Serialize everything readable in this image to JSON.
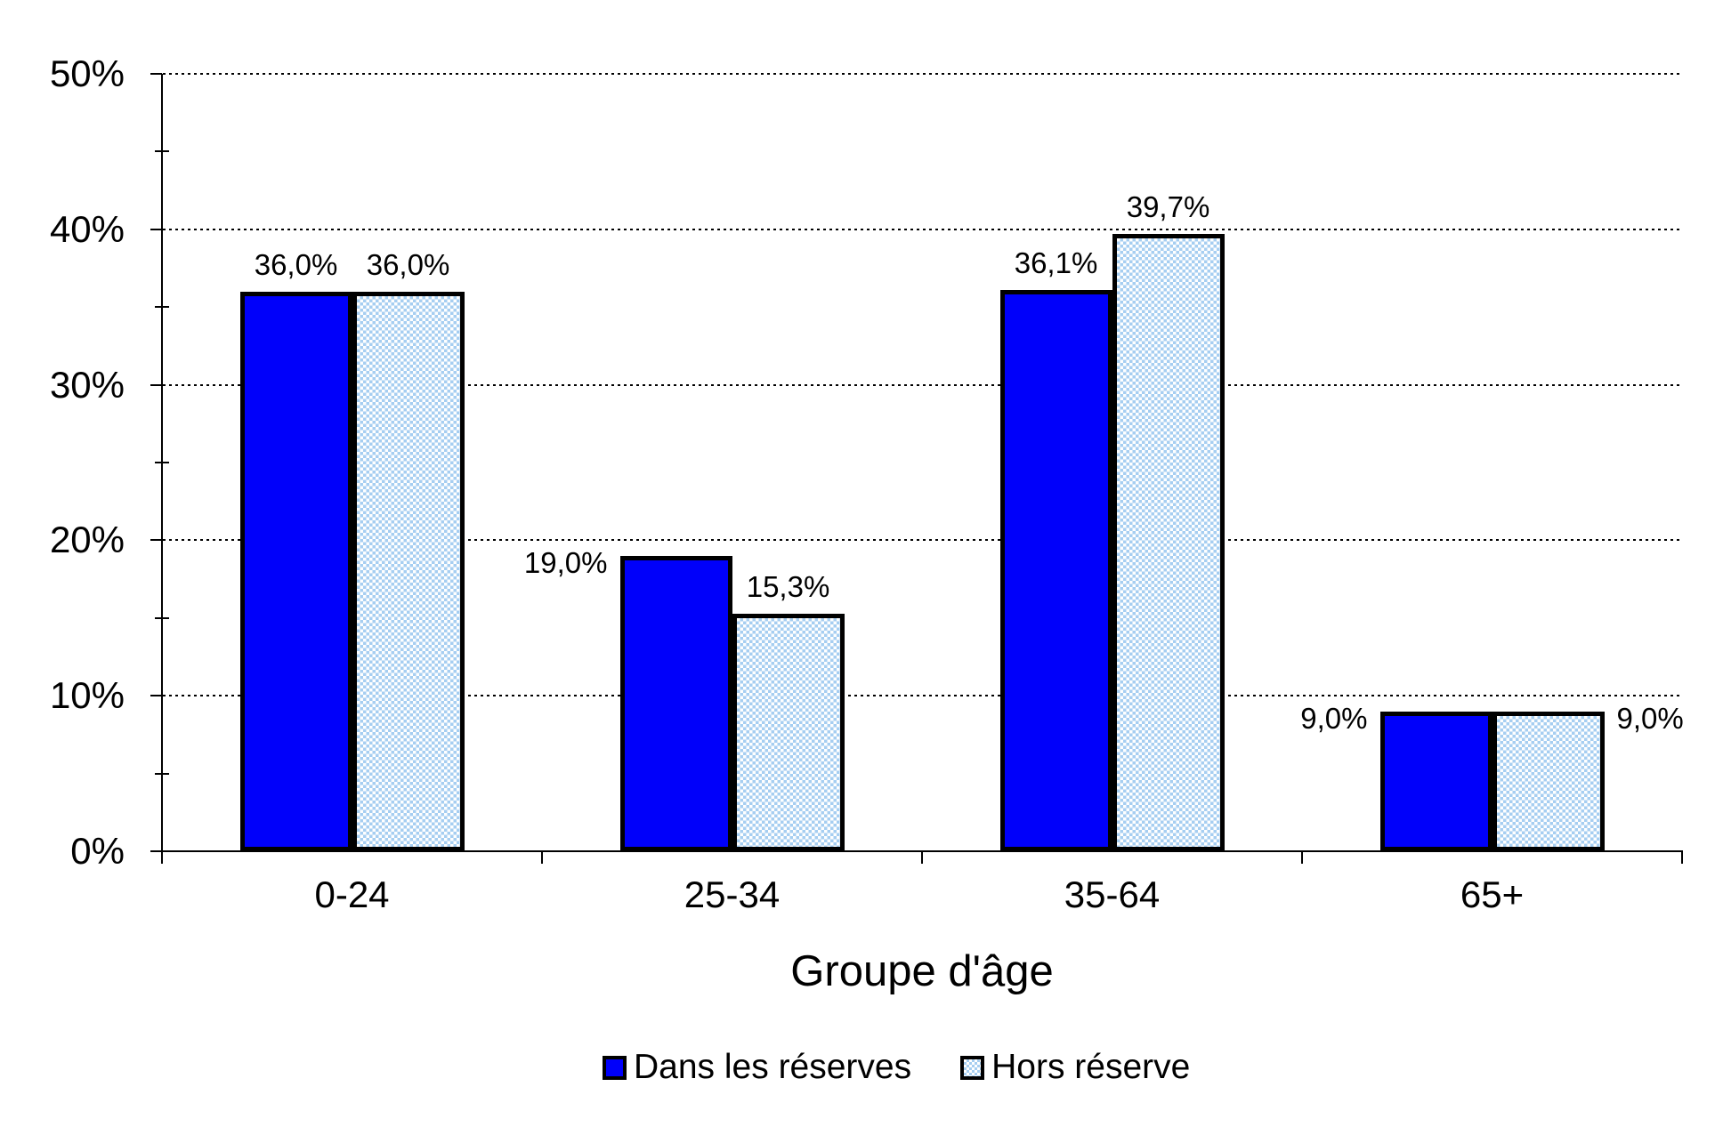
{
  "chart_data": {
    "type": "bar",
    "title": "",
    "categories": [
      "0-24",
      "25-34",
      "35-64",
      "65+"
    ],
    "series": [
      {
        "name": "Dans les réserves",
        "values": [
          36.0,
          19.0,
          36.1,
          9.0
        ],
        "labels": [
          "36,0%",
          "19,0%",
          "36,1%",
          "9,0%"
        ],
        "color": "#0000FA",
        "pattern": "solid"
      },
      {
        "name": "Hors réserve",
        "values": [
          36.0,
          15.3,
          39.7,
          9.0
        ],
        "labels": [
          "36,0%",
          "15,3%",
          "39,7%",
          "9,0%"
        ],
        "color": "#A6CEF1",
        "pattern": "checker"
      }
    ],
    "xlabel": "Groupe d'âge",
    "ylabel": "",
    "ylim": [
      0,
      50
    ],
    "ytick_step": 10,
    "ytick_labels": [
      "0%",
      "10%",
      "20%",
      "30%",
      "40%",
      "50%"
    ],
    "grid": "horizontal dotted major gridlines, minor ticks every 5%",
    "legend_position": "bottom"
  },
  "colors": {
    "bar_solid": "#0000FA",
    "bar_pattern": "#A6CEF1",
    "axis": "#000000",
    "background": "#ffffff"
  }
}
